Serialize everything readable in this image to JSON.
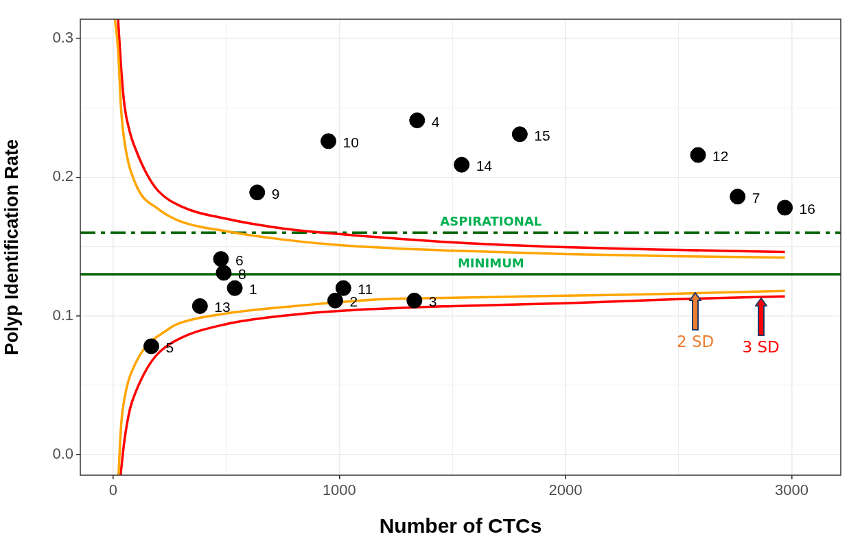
{
  "chart_data": {
    "type": "scatter",
    "xlabel": "Number of CTCs",
    "ylabel": "Polyp Identification Rate",
    "xlim": [
      -145,
      3217
    ],
    "ylim": [
      -0.015,
      0.314
    ],
    "xticks": [
      0,
      {
        "value": 500,
        "label": null
      },
      1000,
      {
        "value": 1500,
        "label": null
      },
      2000,
      {
        "value": 2500,
        "label": null
      },
      3000
    ],
    "yticks": [
      {
        "value": 0,
        "label": "0.0"
      },
      {
        "value": 0.05,
        "label": null
      },
      0.1,
      {
        "value": 0.15,
        "label": null
      },
      0.2,
      {
        "value": 0.25,
        "label": null
      },
      0.3
    ],
    "grid": true,
    "legend": false,
    "marker": "circle",
    "series": [
      {
        "type": "scatter",
        "color": "#000000",
        "x": [
          538,
          982,
          1332,
          1344,
          169,
          477,
          2761,
          489,
          637,
          952,
          1018,
          2586,
          384,
          1541,
          1798,
          2970
        ],
        "values": [
          0.12,
          0.111,
          0.111,
          0.241,
          0.078,
          0.141,
          0.186,
          0.131,
          0.189,
          0.226,
          0.12,
          0.216,
          0.107,
          0.209,
          0.231,
          0.178
        ]
      },
      {
        "type": "line",
        "color": "#ffa500",
        "marker": "none",
        "x": [
          8,
          22,
          35,
          50,
          100,
          200,
          300,
          500,
          750,
          1000,
          1500,
          2000,
          2500,
          2970
        ],
        "values": [
          0.314,
          0.292,
          0.25,
          0.226,
          0.195,
          0.177,
          0.168,
          0.161,
          0.155,
          0.151,
          0.147,
          0.1445,
          0.143,
          0.142
        ]
      },
      {
        "type": "line",
        "color": "#ffa500",
        "marker": "none",
        "x": [
          24,
          35,
          50,
          100,
          250,
          300,
          500,
          800,
          1200,
          1500,
          2000,
          2500,
          2970
        ],
        "values": [
          -0.015,
          0.02,
          0.04,
          0.066,
          0.091,
          0.095,
          0.1017,
          0.107,
          0.112,
          0.113,
          0.1145,
          0.116,
          0.118
        ]
      },
      {
        "type": "line",
        "color": "#ff0000",
        "marker": "none",
        "x": [
          22,
          35,
          50,
          75,
          100,
          150,
          200,
          300,
          500,
          750,
          1000,
          1500,
          2000,
          2500,
          2970
        ],
        "values": [
          0.314,
          0.28,
          0.252,
          0.232,
          0.22,
          0.202,
          0.19,
          0.179,
          0.17,
          0.163,
          0.159,
          0.153,
          0.1495,
          0.1475,
          0.146
        ]
      },
      {
        "type": "line",
        "color": "#ff0000",
        "marker": "none",
        "x": [
          33,
          50,
          75,
          100,
          150,
          200,
          300,
          500,
          750,
          1000,
          1500,
          2000,
          2500,
          2970
        ],
        "values": [
          -0.015,
          0.01,
          0.033,
          0.045,
          0.062,
          0.073,
          0.084,
          0.094,
          0.1,
          0.1035,
          0.107,
          0.109,
          0.112,
          0.114
        ]
      }
    ],
    "ref_lines": [
      {
        "axis": "y",
        "value": 0.16,
        "label": "ASPIRATIONAL",
        "color": "#006400",
        "line_style": "dashed"
      },
      {
        "axis": "y",
        "value": 0.13,
        "label": "MINIMUM",
        "color": "#006400",
        "line_style": "solid"
      }
    ],
    "annotations": [
      {
        "text": "10",
        "x": 952,
        "y": 0.226
      },
      {
        "text": "11",
        "x": 1018,
        "y": 0.12
      },
      {
        "text": "12",
        "x": 2586,
        "y": 0.216
      },
      {
        "text": "13",
        "x": 384,
        "y": 0.107
      },
      {
        "text": "14",
        "x": 1541,
        "y": 0.209
      },
      {
        "text": "15",
        "x": 1798,
        "y": 0.231
      },
      {
        "text": "16",
        "x": 2970,
        "y": 0.178
      },
      {
        "text": "1",
        "x": 538,
        "y": 0.12
      },
      {
        "text": "2",
        "x": 982,
        "y": 0.111
      },
      {
        "text": "3",
        "x": 1332,
        "y": 0.111
      },
      {
        "text": "4",
        "x": 1344,
        "y": 0.241
      },
      {
        "text": "5",
        "x": 169,
        "y": 0.078
      },
      {
        "text": "6",
        "x": 477,
        "y": 0.141
      },
      {
        "text": "7",
        "x": 2761,
        "y": 0.186
      },
      {
        "text": "8",
        "x": 489,
        "y": 0.131
      },
      {
        "text": "9",
        "x": 637,
        "y": 0.189
      },
      {
        "text": "2 SD",
        "x": 2574,
        "y": 0.117
      },
      {
        "text": "3 SD",
        "x": 2864,
        "y": 0.113
      }
    ]
  }
}
